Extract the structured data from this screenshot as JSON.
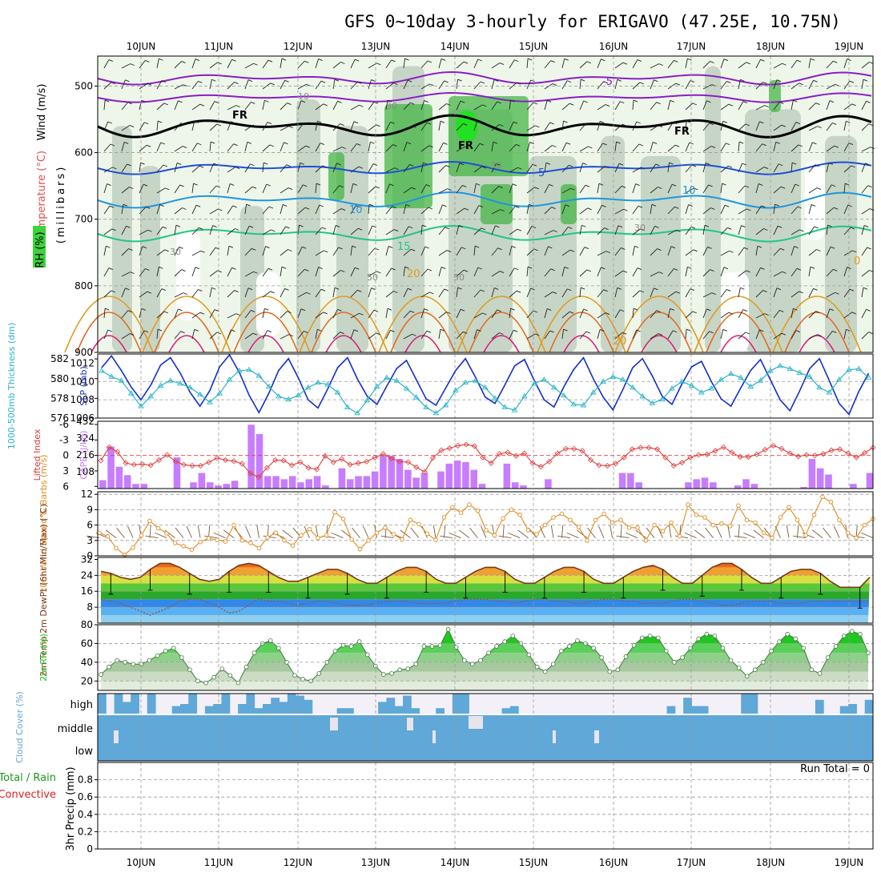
{
  "title": "GFS 0~10day 3-hourly for ERIGAVO (47.25E, 10.75N)",
  "dates": [
    "10JUN",
    "11JUN",
    "12JUN",
    "13JUN",
    "14JUN",
    "15JUN",
    "16JUN",
    "17JUN",
    "18JUN",
    "19JUN"
  ],
  "colors": {
    "frame": "#000000",
    "grid": "#9a9a9a",
    "rh_green": "#3cb43c",
    "cape": "#c77dff",
    "slp": "#1030c8",
    "thick": "#28b4c8",
    "li": "#e03c3c",
    "wind": "#e08a1e",
    "temp": "#7a3a1a",
    "rh2m": "#1ec81e",
    "cloud": "#5fa8d8",
    "precip_total": "#1a9a1a",
    "precip_conv": "#e02020"
  },
  "panels": {
    "upper": {
      "ylabel_wind": "Wind (m/s)",
      "ylabel_temp": "Temperature (°C)",
      "ylabel_rh": "RH (%)",
      "ylabel_p": "(millibars)",
      "pressure_ticks": [
        "500",
        "600",
        "700",
        "800",
        "900"
      ],
      "rh_labels": [
        "10",
        "30",
        "30",
        "30",
        "30",
        "50",
        "50"
      ],
      "temp_labels": [
        "-5",
        "5",
        "10",
        "10",
        "15",
        "20",
        "20",
        "0"
      ],
      "fr_labels": [
        "FR",
        "FR",
        "FR"
      ]
    },
    "thick": {
      "ylabel_thick": "1000-500mb Thickness (dm)",
      "ylabel_slp": "SLP (mb)",
      "left_ticks": [
        "582",
        "580",
        "578",
        "576"
      ],
      "right_ticks": [
        "1012",
        "1010",
        "1008",
        "1006"
      ]
    },
    "cape": {
      "ylabel_li": "Lifted Index",
      "ylabel_cape": "CAPE (J/kg)",
      "left_ticks": [
        "-6",
        "-3",
        "0",
        "3",
        "6"
      ],
      "right_ticks": [
        "432",
        "324",
        "216",
        "108"
      ]
    },
    "wind10": {
      "ylabel": "10m Wind Speed & Barbs (m/s)",
      "ticks": [
        "12",
        "9",
        "6",
        "3",
        "0"
      ]
    },
    "temp2m": {
      "ylabel": "2m Temp 2m DewPt (6hr Min/Max) (°C)",
      "ticks": [
        "32",
        "24",
        "16",
        "8"
      ]
    },
    "rh2m": {
      "ylabel": "2m RH (%)",
      "ticks": [
        "80",
        "60",
        "40",
        "20"
      ]
    },
    "cloud": {
      "ylabel": "Cloud Cover (%)",
      "levels": [
        "high",
        "middle",
        "low"
      ]
    },
    "precip": {
      "ylabel_total": "Total / Rain",
      "ylabel_conv": "Convective",
      "ylabel_mm": "3hr Precip (mm)",
      "ticks": [
        "0.8",
        "0.6",
        "0.4",
        "0.2",
        "0"
      ],
      "run_total": "Run Total = 0"
    }
  },
  "chart_data": [
    {
      "type": "line",
      "title": "SLP (mb)",
      "x_start": "09JUN 12Z",
      "step_hours": 3,
      "ylim": [
        1006,
        1013
      ],
      "values": [
        1011.5,
        1012.8,
        1011.2,
        1009.4,
        1008.0,
        1009.6,
        1011.8,
        1012.6,
        1010.9,
        1008.8,
        1007.3,
        1009.0,
        1011.6,
        1012.9,
        1011.0,
        1008.5,
        1006.6,
        1008.7,
        1011.2,
        1012.5,
        1010.4,
        1008.0,
        1007.1,
        1009.2,
        1011.5,
        1012.6,
        1010.3,
        1008.4,
        1007.5,
        1009.5,
        1011.4,
        1012.3,
        1010.2,
        1008.1,
        1007.4,
        1009.3,
        1011.2,
        1012.5,
        1010.5,
        1008.3,
        1007.6,
        1009.6,
        1011.7,
        1012.4,
        1010.1,
        1008.0,
        1007.2,
        1009.4,
        1011.3,
        1012.6,
        1010.3,
        1008.3,
        1006.9,
        1009.1,
        1011.5,
        1012.5,
        1010.6,
        1008.4,
        1007.5,
        1009.7,
        1011.6,
        1012.2,
        1010.0,
        1008.1,
        1007.3,
        1009.3,
        1011.2,
        1012.4,
        1010.2,
        1008.0,
        1006.8,
        1009.0,
        1011.4,
        1012.5,
        1010.1,
        1007.6,
        1006.4,
        1008.9,
        1010.9,
        1011.3,
        1009.4,
        1008.8
      ]
    },
    {
      "type": "line",
      "title": "1000-500mb Thickness (dm)",
      "ylim": [
        576,
        582.5
      ],
      "values": [
        580.8,
        580.2,
        579.8,
        578.5,
        577.2,
        578.2,
        579.3,
        579.8,
        579.5,
        579.1,
        578.4,
        577.6,
        578.5,
        579.9,
        580.8,
        580.9,
        580.3,
        579.2,
        578.2,
        577.9,
        578.3,
        579.1,
        579.6,
        579.4,
        578.6,
        577.1,
        576.5,
        577.8,
        579.2,
        580.1,
        579.8,
        579.0,
        578.1,
        577.1,
        576.5,
        577.3,
        578.8,
        579.6,
        579.8,
        579.1,
        578.0,
        577.1,
        576.8,
        578.2,
        579.5,
        579.9,
        579.1,
        578.3,
        577.4,
        577.3,
        578.6,
        579.7,
        580.2,
        579.9,
        579.1,
        578.2,
        577.5,
        577.9,
        579.0,
        579.7,
        579.3,
        578.6,
        579.0,
        579.9,
        580.5,
        580.1,
        579.2,
        579.8,
        580.8,
        581.3,
        581.0,
        580.6,
        580.2,
        579.1,
        578.6,
        579.9,
        580.9,
        581.0,
        580.1,
        578.9,
        579.8,
        580.2
      ]
    },
    {
      "type": "bar",
      "title": "CAPE (J/kg)",
      "ylim": [
        0,
        432
      ],
      "values": [
        54,
        270,
        140,
        86,
        30,
        30,
        0,
        0,
        0,
        200,
        0,
        40,
        100,
        40,
        20,
        30,
        50,
        0,
        410,
        350,
        80,
        80,
        60,
        80,
        40,
        60,
        80,
        20,
        0,
        130,
        60,
        80,
        80,
        110,
        210,
        210,
        190,
        120,
        70,
        100,
        0,
        110,
        160,
        180,
        170,
        120,
        30,
        0,
        0,
        160,
        40,
        20,
        0,
        0,
        60,
        0,
        0,
        0,
        0,
        0,
        0,
        0,
        0,
        100,
        100,
        40,
        0,
        0,
        0,
        0,
        0,
        40,
        60,
        70,
        40,
        0,
        0,
        20,
        60,
        30,
        0,
        0,
        0,
        0,
        0,
        10,
        190,
        130,
        90,
        0,
        0,
        30,
        0,
        100
      ]
    },
    {
      "type": "line",
      "title": "Lifted Index",
      "ylim": [
        6,
        -6
      ],
      "values": [
        1.0,
        -1.6,
        -0.7,
        1.5,
        1.8,
        1.7,
        1.9,
        0.9,
        -0.1,
        1.2,
        1.8,
        2.0,
        2.0,
        1.3,
        0.5,
        0.9,
        1.1,
        1.6,
        3.5,
        4.2,
        2.4,
        0.9,
        1.0,
        1.9,
        1.3,
        2.4,
        2.7,
        0.1,
        1.3,
        0.7,
        1.8,
        1.5,
        1.2,
        0.4,
        -0.3,
        0.6,
        1.2,
        1.3,
        2.3,
        3.2,
        0.5,
        -1.0,
        -1.4,
        -1.9,
        -2.1,
        -1.8,
        0.4,
        1.5,
        -0.3,
        -0.6,
        0.1,
        -0.4,
        1.5,
        2.2,
        1.2,
        -0.4,
        -1.3,
        -1.3,
        -0.9,
        0.9,
        1.9,
        2.0,
        1.6,
        0.4,
        -1.2,
        -1.5,
        -1.5,
        -1.2,
        0.4,
        2.0,
        1.4,
        0.4,
        -0.1,
        -0.2,
        -0.9,
        -1.6,
        -0.6,
        0.3,
        0.3,
        -0.2,
        -1.1,
        -1.9,
        -1.3,
        -0.4,
        0.2,
        -0.1,
        0.0,
        -0.3,
        -1.0,
        -1.2,
        -0.4,
        0.4,
        -0.5,
        -1.5
      ]
    },
    {
      "type": "line",
      "title": "10m Wind Speed (m/s)",
      "ylim": [
        0,
        12
      ],
      "values": [
        4.5,
        3.8,
        1.5,
        0.2,
        1.6,
        4.0,
        6.8,
        5.4,
        4.4,
        2.5,
        1.9,
        1.2,
        2.7,
        3.4,
        3.1,
        2.8,
        6.0,
        3.0,
        2.5,
        1.5,
        3.6,
        4.5,
        3.0,
        2.0,
        4.0,
        5.2,
        3.5,
        4.0,
        8.5,
        7.2,
        3.2,
        1.3,
        3.0,
        4.5,
        5.5,
        4.2,
        3.2,
        7.0,
        6.2,
        4.3,
        3.1,
        7.5,
        9.5,
        8.4,
        10.0,
        8.8,
        5.0,
        4.0,
        7.3,
        9.0,
        8.0,
        5.0,
        4.2,
        6.0,
        7.5,
        8.2,
        7.0,
        5.6,
        3.0,
        7.0,
        8.2,
        6.5,
        7.0,
        5.5,
        5.5,
        3.0,
        6.0,
        4.8,
        6.5,
        3.8,
        10.0,
        8.0,
        7.5,
        6.0,
        6.3,
        5.8,
        9.8,
        7.0,
        6.5,
        4.5,
        3.5,
        7.5,
        9.5,
        7.0,
        4.0,
        8.0,
        11.5,
        10.5,
        7.0,
        4.5,
        3.5,
        6.0,
        7.2
      ]
    },
    {
      "type": "area",
      "title": "2m Temp (°C)",
      "ylim": [
        0,
        33
      ],
      "values": [
        26,
        25,
        23,
        22,
        23,
        27,
        30,
        30,
        28,
        25,
        22,
        21,
        22,
        26,
        29,
        30,
        29,
        26,
        23,
        21,
        21,
        23,
        25,
        27,
        27,
        25,
        22,
        20,
        20,
        23,
        26,
        28,
        28,
        26,
        22,
        20,
        20,
        23,
        26,
        28,
        28,
        26,
        22,
        20,
        20,
        23,
        26,
        28,
        28,
        26,
        22,
        20,
        20,
        23,
        26,
        28,
        29,
        27,
        23,
        20,
        20,
        24,
        28,
        30,
        30,
        27,
        23,
        20,
        20,
        23,
        26,
        27,
        27,
        25,
        21,
        18,
        18,
        18,
        23
      ]
    },
    {
      "type": "line",
      "title": "2m DewPt (°C)",
      "ylim": [
        0,
        33
      ],
      "values": [
        12,
        11,
        10,
        8,
        6,
        4,
        6,
        8,
        11,
        12,
        12,
        10,
        8,
        5,
        6,
        9,
        12,
        11,
        11,
        10,
        9,
        10,
        11,
        11,
        10,
        9,
        9,
        9,
        10,
        11,
        11,
        11,
        10,
        10,
        10,
        10,
        11,
        12,
        12,
        12,
        11,
        11,
        10,
        11,
        12,
        12,
        11,
        11,
        10,
        10,
        11,
        12,
        12,
        11,
        11,
        10,
        10,
        10,
        11,
        12,
        12,
        11,
        10,
        9,
        9,
        10,
        11,
        11,
        11,
        10,
        10,
        10,
        11,
        11,
        11,
        11,
        11,
        11,
        11
      ]
    },
    {
      "type": "area",
      "title": "2m RH (%)",
      "ylim": [
        10,
        80
      ],
      "values": [
        27,
        35,
        42,
        40,
        38,
        38,
        42,
        47,
        52,
        55,
        45,
        32,
        20,
        18,
        24,
        33,
        26,
        18,
        35,
        50,
        60,
        63,
        55,
        40,
        26,
        22,
        20,
        28,
        40,
        52,
        58,
        57,
        62,
        48,
        36,
        27,
        28,
        32,
        33,
        38,
        57,
        57,
        58,
        75,
        56,
        42,
        38,
        42,
        50,
        57,
        62,
        68,
        60,
        48,
        35,
        30,
        38,
        52,
        57,
        63,
        60,
        55,
        45,
        30,
        32,
        46,
        58,
        66,
        68,
        66,
        52,
        40,
        45,
        55,
        65,
        70,
        68,
        55,
        42,
        34,
        25,
        32,
        40,
        52,
        62,
        70,
        65,
        55,
        32,
        28,
        45,
        57,
        68,
        73,
        70,
        50
      ]
    },
    {
      "type": "bar",
      "title": "Cloud Cover high (%)",
      "ylim": [
        0,
        100
      ],
      "values": [
        100,
        0,
        100,
        60,
        100,
        0,
        100,
        0,
        0,
        40,
        50,
        100,
        0,
        40,
        50,
        100,
        0,
        50,
        100,
        30,
        50,
        80,
        60,
        100,
        90,
        70,
        0,
        0,
        0,
        30,
        30,
        0,
        0,
        0,
        60,
        80,
        40,
        90,
        30,
        0,
        0,
        30,
        0,
        100,
        100,
        0,
        0,
        0,
        0,
        30,
        40,
        0,
        0,
        0,
        0,
        0,
        0,
        0,
        0,
        0,
        0,
        0,
        0,
        0,
        0,
        0,
        0,
        0,
        0,
        40,
        0,
        80,
        40,
        40,
        0,
        0,
        0,
        0,
        100,
        100,
        0,
        0,
        0,
        0,
        0,
        0,
        0,
        70,
        0,
        0,
        40,
        50,
        0,
        70
      ]
    },
    {
      "type": "bar",
      "title": "3hr Precip (mm)",
      "ylim": [
        0,
        1
      ],
      "values": [
        0,
        0,
        0,
        0,
        0,
        0,
        0,
        0,
        0,
        0,
        0,
        0,
        0,
        0,
        0,
        0,
        0,
        0,
        0,
        0,
        0,
        0,
        0,
        0,
        0,
        0,
        0,
        0,
        0,
        0,
        0,
        0,
        0,
        0,
        0,
        0,
        0,
        0,
        0,
        0,
        0,
        0,
        0,
        0,
        0,
        0,
        0,
        0,
        0,
        0,
        0,
        0,
        0,
        0,
        0,
        0,
        0,
        0,
        0,
        0,
        0,
        0,
        0,
        0,
        0,
        0,
        0,
        0,
        0,
        0,
        0,
        0,
        0,
        0,
        0,
        0,
        0,
        0,
        0,
        0
      ]
    }
  ]
}
